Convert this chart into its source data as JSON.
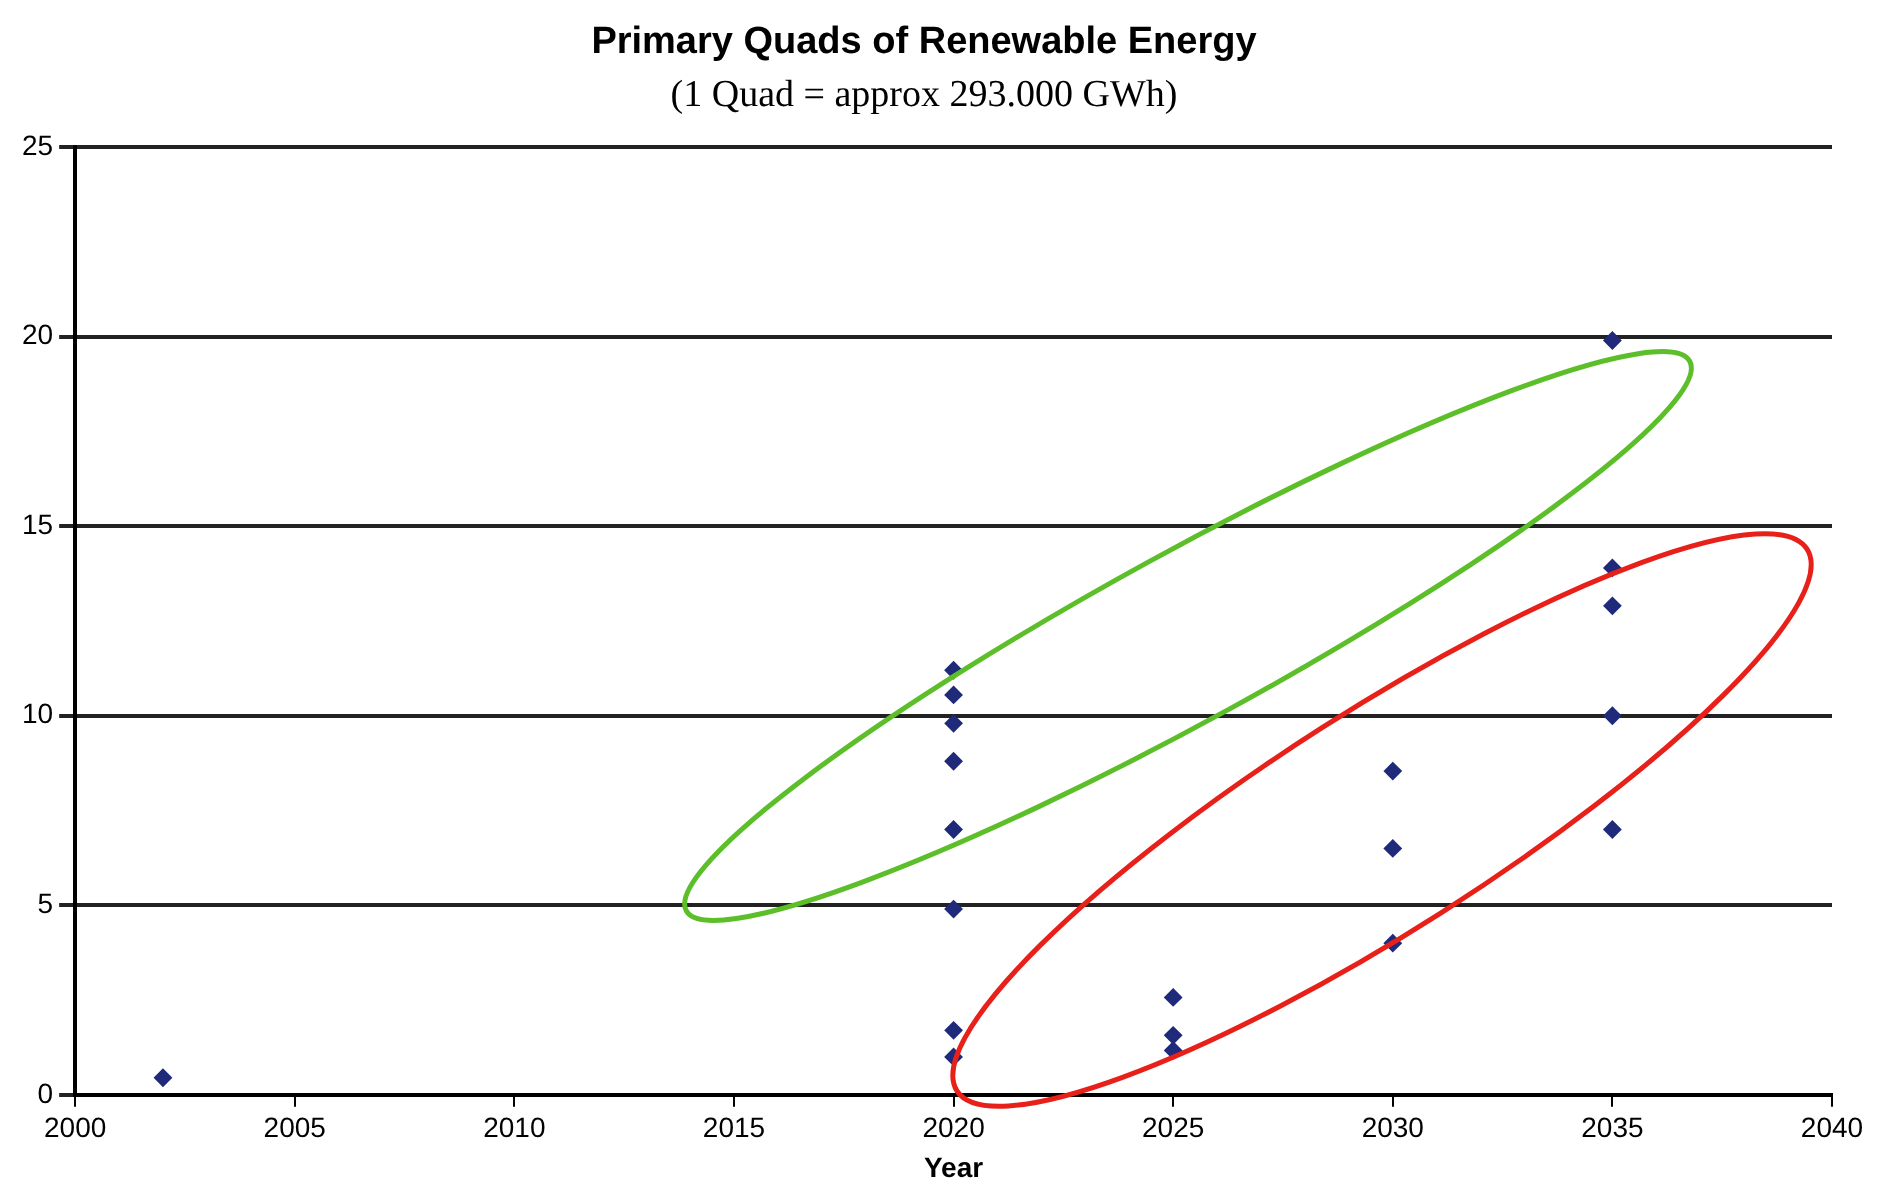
{
  "chart_data": {
    "type": "scatter",
    "title": "Primary Quads of Renewable Energy",
    "subtitle": "(1 Quad = approx 293.000 GWh)",
    "xlabel": "Year",
    "x": [
      2002,
      2020,
      2020,
      2020,
      2020,
      2020,
      2020,
      2020,
      2020,
      2025,
      2025,
      2025,
      2030,
      2030,
      2030,
      2035,
      2035,
      2035,
      2035,
      2035
    ],
    "values": [
      0.45,
      11.2,
      10.55,
      9.8,
      8.8,
      7.0,
      4.9,
      1.7,
      1.0,
      2.57,
      1.57,
      1.17,
      8.54,
      6.5,
      4.0,
      19.9,
      13.9,
      12.9,
      10.0,
      7.0
    ],
    "color": "#1f2a7a",
    "marker": "diamond",
    "xlim": [
      2000,
      2040
    ],
    "xticks": [
      2000,
      2005,
      2010,
      2015,
      2020,
      2025,
      2030,
      2035,
      2040
    ],
    "ylim": [
      0,
      25
    ],
    "yticks": [
      0,
      5,
      10,
      15,
      20,
      25
    ],
    "grid": "y",
    "legend": false
  }
}
